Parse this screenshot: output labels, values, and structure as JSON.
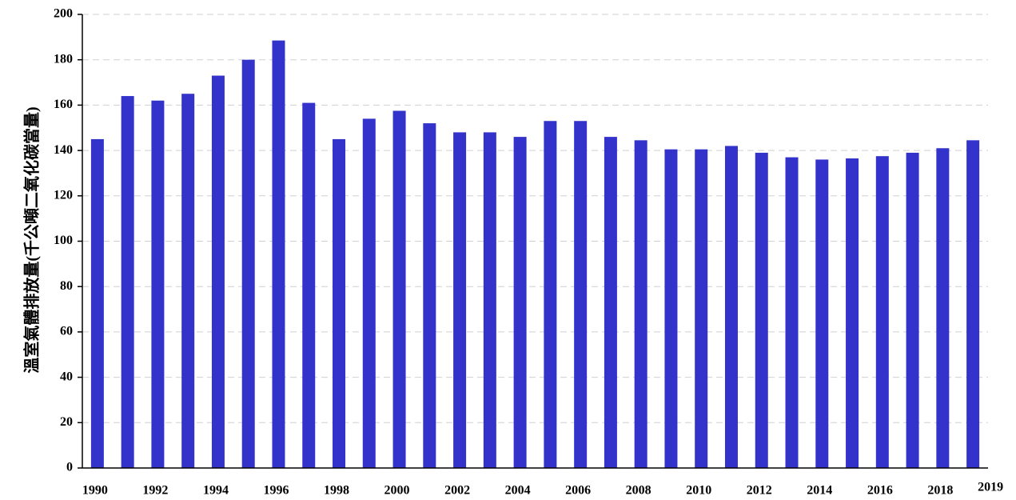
{
  "chart_data": {
    "type": "bar",
    "y_label": "溫室氣體排放量(千公噸二氧化碳當量)",
    "categories": [
      "1990",
      null,
      "1992",
      null,
      "1994",
      null,
      "1996",
      null,
      "1998",
      null,
      "2000",
      null,
      "2002",
      null,
      "2004",
      null,
      "2006",
      null,
      "2008",
      null,
      "2010",
      null,
      "2012",
      null,
      "2014",
      null,
      "2016",
      null,
      "2018",
      "2019"
    ],
    "values": [
      145,
      164,
      162,
      165,
      173,
      180,
      188.5,
      161,
      145,
      154,
      157.5,
      152,
      148,
      148,
      146,
      153,
      153,
      146,
      144.5,
      140.5,
      140.5,
      142,
      139,
      137,
      136,
      136.5,
      137.5,
      139,
      141,
      144.5
    ],
    "color": "#3333cc",
    "ylim": [
      0,
      200
    ],
    "yticks": [
      0,
      20,
      40,
      60,
      80,
      100,
      120,
      140,
      160,
      180,
      200
    ],
    "grid": true
  }
}
